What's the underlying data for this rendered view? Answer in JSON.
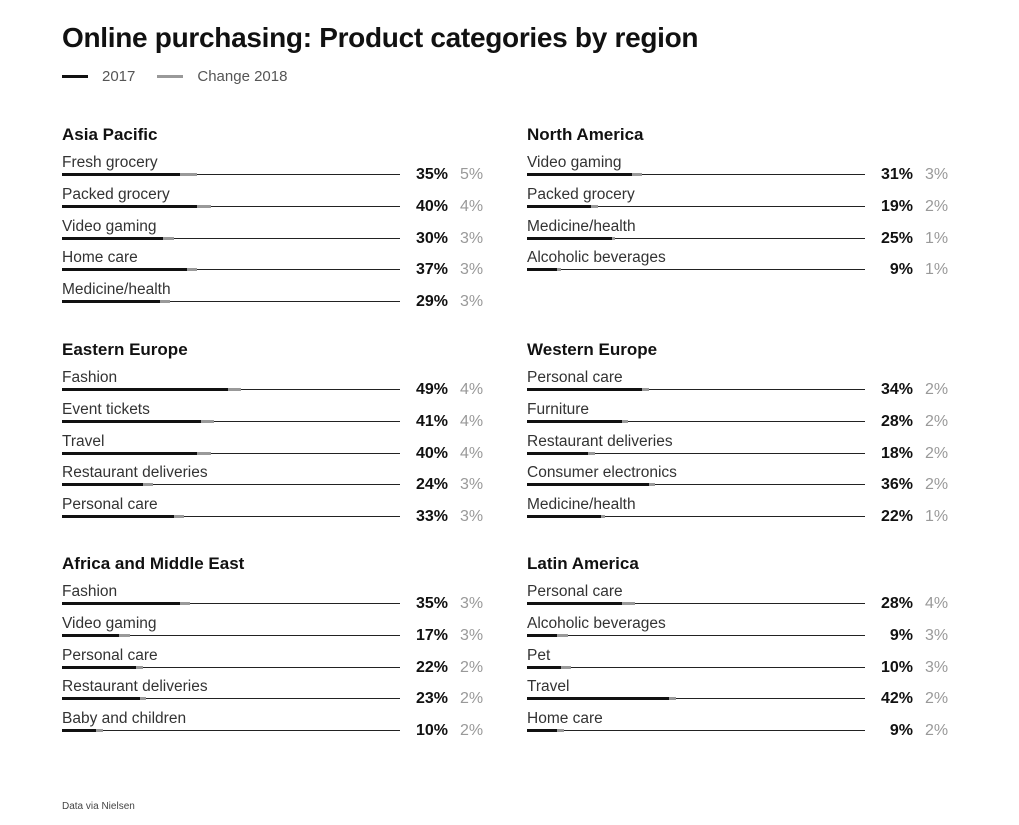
{
  "title": "Online purchasing: Product categories by region",
  "legend": [
    {
      "label": "2017",
      "color": "#111111"
    },
    {
      "label": "Change 2018",
      "color": "#999999"
    }
  ],
  "footer": "Data via Nielsen",
  "chart_data": {
    "type": "bar",
    "title": "Online purchasing: Product categories by region",
    "series_names": [
      "2017",
      "Change 2018"
    ],
    "xlim": [
      0,
      100
    ],
    "regions": [
      {
        "name": "Asia Pacific",
        "items": [
          {
            "category": "Fresh grocery",
            "value": 35,
            "change": 5,
            "value_label": "35%",
            "change_label": "5%"
          },
          {
            "category": "Packed grocery",
            "value": 40,
            "change": 4,
            "value_label": "40%",
            "change_label": "4%"
          },
          {
            "category": "Video gaming",
            "value": 30,
            "change": 3,
            "value_label": "30%",
            "change_label": "3%"
          },
          {
            "category": "Home care",
            "value": 37,
            "change": 3,
            "value_label": "37%",
            "change_label": "3%"
          },
          {
            "category": "Medicine/health",
            "value": 29,
            "change": 3,
            "value_label": "29%",
            "change_label": "3%"
          }
        ]
      },
      {
        "name": "North America",
        "items": [
          {
            "category": "Video gaming",
            "value": 31,
            "change": 3,
            "value_label": "31%",
            "change_label": "3%"
          },
          {
            "category": "Packed grocery",
            "value": 19,
            "change": 2,
            "value_label": "19%",
            "change_label": "2%"
          },
          {
            "category": "Medicine/health",
            "value": 25,
            "change": 1,
            "value_label": "25%",
            "change_label": "1%"
          },
          {
            "category": "Alcoholic beverages",
            "value": 9,
            "change": 1,
            "value_label": "9%",
            "change_label": "1%"
          }
        ]
      },
      {
        "name": "Eastern Europe",
        "items": [
          {
            "category": "Fashion",
            "value": 49,
            "change": 4,
            "value_label": "49%",
            "change_label": "4%"
          },
          {
            "category": "Event tickets",
            "value": 41,
            "change": 4,
            "value_label": "41%",
            "change_label": "4%"
          },
          {
            "category": "Travel",
            "value": 40,
            "change": 4,
            "value_label": "40%",
            "change_label": "4%"
          },
          {
            "category": "Restaurant deliveries",
            "value": 24,
            "change": 3,
            "value_label": "24%",
            "change_label": "3%"
          },
          {
            "category": "Personal care",
            "value": 33,
            "change": 3,
            "value_label": "33%",
            "change_label": "3%"
          }
        ]
      },
      {
        "name": "Western Europe",
        "items": [
          {
            "category": "Personal care",
            "value": 34,
            "change": 2,
            "value_label": "34%",
            "change_label": "2%"
          },
          {
            "category": "Furniture",
            "value": 28,
            "change": 2,
            "value_label": "28%",
            "change_label": "2%"
          },
          {
            "category": "Restaurant deliveries",
            "value": 18,
            "change": 2,
            "value_label": "18%",
            "change_label": "2%"
          },
          {
            "category": "Consumer electronics",
            "value": 36,
            "change": 2,
            "value_label": "36%",
            "change_label": "2%"
          },
          {
            "category": "Medicine/health",
            "value": 22,
            "change": 1,
            "value_label": "22%",
            "change_label": "1%"
          }
        ]
      },
      {
        "name": "Africa and Middle East",
        "items": [
          {
            "category": "Fashion",
            "value": 35,
            "change": 3,
            "value_label": "35%",
            "change_label": "3%"
          },
          {
            "category": "Video gaming",
            "value": 17,
            "change": 3,
            "value_label": "17%",
            "change_label": "3%"
          },
          {
            "category": "Personal care",
            "value": 22,
            "change": 2,
            "value_label": "22%",
            "change_label": "2%"
          },
          {
            "category": "Restaurant deliveries",
            "value": 23,
            "change": 2,
            "value_label": "23%",
            "change_label": "2%"
          },
          {
            "category": "Baby and children",
            "value": 10,
            "change": 2,
            "value_label": "10%",
            "change_label": "2%"
          }
        ]
      },
      {
        "name": "Latin America",
        "items": [
          {
            "category": "Personal care",
            "value": 28,
            "change": 4,
            "value_label": "28%",
            "change_label": "4%"
          },
          {
            "category": "Alcoholic beverages",
            "value": 9,
            "change": 3,
            "value_label": "9%",
            "change_label": "3%"
          },
          {
            "category": "Pet",
            "value": 10,
            "change": 3,
            "value_label": "10%",
            "change_label": "3%"
          },
          {
            "category": "Travel",
            "value": 42,
            "change": 2,
            "value_label": "42%",
            "change_label": "2%"
          },
          {
            "category": "Home care",
            "value": 9,
            "change": 2,
            "value_label": "9%",
            "change_label": "2%"
          }
        ]
      }
    ]
  }
}
